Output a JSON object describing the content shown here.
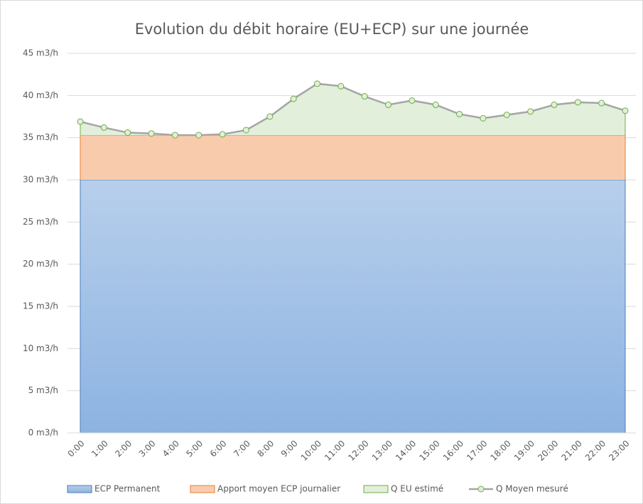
{
  "chart_data": {
    "type": "area",
    "title": "Evolution du débit horaire (EU+ECP) sur une journée",
    "categories": [
      "0:00",
      "1:00",
      "2:00",
      "3:00",
      "4:00",
      "5:00",
      "6:00",
      "7:00",
      "8:00",
      "9:00",
      "10:00",
      "11:00",
      "12:00",
      "13:00",
      "14:00",
      "15:00",
      "16:00",
      "17:00",
      "18:00",
      "19:00",
      "20:00",
      "21:00",
      "22:00",
      "23:00"
    ],
    "series": [
      {
        "name": "ECP Permanent",
        "type": "area",
        "stacked": true,
        "color": "#9dbde6",
        "edge": "#4a7ebb",
        "values": [
          30,
          30,
          30,
          30,
          30,
          30,
          30,
          30,
          30,
          30,
          30,
          30,
          30,
          30,
          30,
          30,
          30,
          30,
          30,
          30,
          30,
          30,
          30,
          30
        ]
      },
      {
        "name": "Apport moyen ECP journalier",
        "type": "area",
        "stacked": true,
        "color": "#f8cbad",
        "edge": "#ed7d31",
        "values": [
          5.3,
          5.3,
          5.3,
          5.3,
          5.3,
          5.3,
          5.3,
          5.3,
          5.3,
          5.3,
          5.3,
          5.3,
          5.3,
          5.3,
          5.3,
          5.3,
          5.3,
          5.3,
          5.3,
          5.3,
          5.3,
          5.3,
          5.3,
          5.3
        ]
      },
      {
        "name": "Q EU estimé",
        "type": "area",
        "stacked": true,
        "color": "#e2efda",
        "edge": "#70ad47",
        "values": [
          1.6,
          0.9,
          0.3,
          0.2,
          0,
          0,
          0.1,
          0.6,
          2.2,
          4.3,
          6.1,
          5.8,
          4.6,
          3.6,
          4.1,
          3.6,
          2.5,
          2.0,
          2.4,
          2.8,
          3.6,
          3.9,
          3.8,
          2.9
        ]
      },
      {
        "name": "Q Moyen mesuré",
        "type": "line",
        "stacked": false,
        "color": "#a5a5a5",
        "edge": "#70ad47",
        "values": [
          36.9,
          36.2,
          35.6,
          35.5,
          35.3,
          35.3,
          35.4,
          35.9,
          37.5,
          39.6,
          41.4,
          41.1,
          39.9,
          38.9,
          39.4,
          38.9,
          37.8,
          37.3,
          37.7,
          38.1,
          38.9,
          39.2,
          39.1,
          38.2
        ]
      }
    ],
    "ylim": [
      0,
      45
    ],
    "yticks": [
      {
        "value": 0,
        "label": "0 m3/h"
      },
      {
        "value": 5,
        "label": "5 m3/h"
      },
      {
        "value": 10,
        "label": "10 m3/h"
      },
      {
        "value": 15,
        "label": "15 m3/h"
      },
      {
        "value": 20,
        "label": "20 m3/h"
      },
      {
        "value": 25,
        "label": "25 m3/h"
      },
      {
        "value": 30,
        "label": "30 m3/h"
      },
      {
        "value": 35,
        "label": "35 m3/h"
      },
      {
        "value": 40,
        "label": "40 m3/h"
      },
      {
        "value": 45,
        "label": "45 m3/h"
      }
    ],
    "grid": true,
    "legend": "bottom"
  }
}
